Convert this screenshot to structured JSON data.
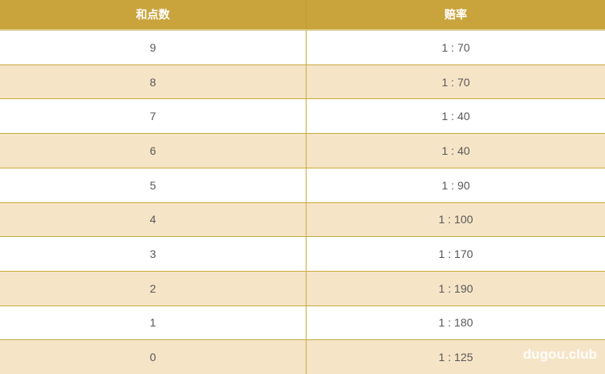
{
  "table": {
    "columns": [
      {
        "label": "和点数"
      },
      {
        "label": "赔率"
      }
    ],
    "rows": [
      {
        "points": "9",
        "odds": "1 : 70"
      },
      {
        "points": "8",
        "odds": "1 : 70"
      },
      {
        "points": "7",
        "odds": "1 : 40"
      },
      {
        "points": "6",
        "odds": "1 : 40"
      },
      {
        "points": "5",
        "odds": "1 : 90"
      },
      {
        "points": "4",
        "odds": "1 : 100"
      },
      {
        "points": "3",
        "odds": "1 : 170"
      },
      {
        "points": "2",
        "odds": "1 : 190"
      },
      {
        "points": "1",
        "odds": "1 : 180"
      },
      {
        "points": "0",
        "odds": "1 : 125"
      }
    ]
  },
  "watermark": "dugou.club",
  "colors": {
    "header_bg": "#c9a43d",
    "header_text": "#ffffff",
    "row_alt_bg": "#f6e4c7",
    "border": "#c9ab3e",
    "cell_text": "#595959"
  }
}
